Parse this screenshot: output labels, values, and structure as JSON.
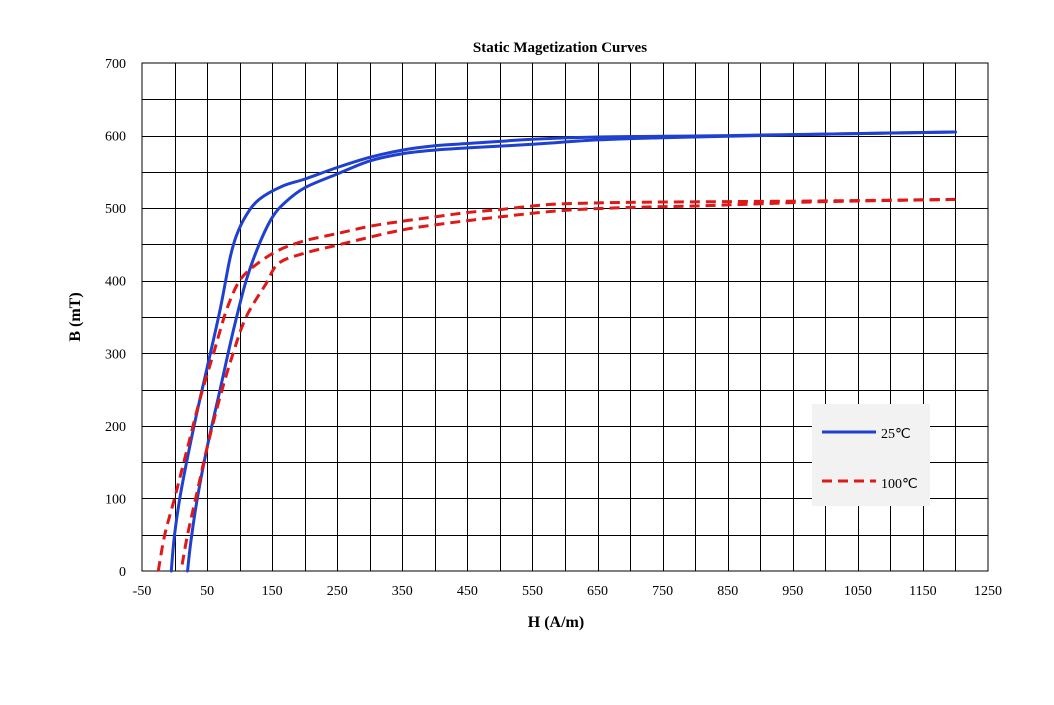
{
  "chart_data": {
    "type": "line",
    "title": "Static Magetization Curves",
    "xlabel": "H (A/m)",
    "ylabel": "B (mT)",
    "xlim": [
      -50,
      1250
    ],
    "ylim": [
      0,
      700
    ],
    "x_ticks": [
      -50,
      50,
      150,
      250,
      350,
      450,
      550,
      650,
      750,
      850,
      950,
      1050,
      1150,
      1250
    ],
    "y_ticks": [
      0,
      100,
      200,
      300,
      400,
      500,
      600,
      700
    ],
    "x_tick_labels": [
      "-50",
      "50",
      "150",
      "250",
      "350",
      "450",
      "550",
      "650",
      "750",
      "850",
      "950",
      "1050",
      "1150",
      "1250"
    ],
    "y_tick_labels": [
      "0",
      "100",
      "200",
      "300",
      "400",
      "500",
      "600",
      "700"
    ],
    "x_grid_step": 50,
    "y_grid_step": 50,
    "grid": true,
    "legend_position": "right",
    "series": [
      {
        "name": "25℃",
        "color": "#2040d0",
        "style": "solid",
        "branches": [
          {
            "label": "upper",
            "points": [
              [
                -5,
                0
              ],
              [
                0,
                50
              ],
              [
                10,
                110
              ],
              [
                30,
                200
              ],
              [
                50,
                280
              ],
              [
                70,
                360
              ],
              [
                85,
                430
              ],
              [
                95,
                462
              ],
              [
                110,
                490
              ],
              [
                130,
                512
              ],
              [
                165,
                530
              ],
              [
                200,
                540
              ],
              [
                250,
                556
              ],
              [
                300,
                570
              ],
              [
                350,
                580
              ],
              [
                400,
                586
              ],
              [
                450,
                589
              ],
              [
                500,
                592
              ],
              [
                550,
                595
              ],
              [
                650,
                598
              ],
              [
                750,
                599
              ],
              [
                850,
                600
              ],
              [
                1000,
                602
              ],
              [
                1200,
                605
              ]
            ]
          },
          {
            "label": "lower",
            "points": [
              [
                1200,
                605
              ],
              [
                1000,
                602
              ],
              [
                850,
                599
              ],
              [
                750,
                597
              ],
              [
                650,
                594
              ],
              [
                550,
                588
              ],
              [
                450,
                583
              ],
              [
                400,
                580
              ],
              [
                350,
                575
              ],
              [
                300,
                565
              ],
              [
                250,
                547
              ],
              [
                200,
                528
              ],
              [
                170,
                508
              ],
              [
                150,
                487
              ],
              [
                130,
                450
              ],
              [
                110,
                400
              ],
              [
                90,
                330
              ],
              [
                70,
                250
              ],
              [
                50,
                170
              ],
              [
                35,
                100
              ],
              [
                25,
                40
              ],
              [
                20,
                0
              ]
            ]
          }
        ]
      },
      {
        "name": "100℃",
        "color": "#e01818",
        "style": "dashed",
        "branches": [
          {
            "label": "upper",
            "points": [
              [
                -25,
                0
              ],
              [
                -15,
                50
              ],
              [
                0,
                100
              ],
              [
                20,
                170
              ],
              [
                40,
                240
              ],
              [
                60,
                300
              ],
              [
                80,
                360
              ],
              [
                100,
                400
              ],
              [
                125,
                422
              ],
              [
                160,
                442
              ],
              [
                200,
                455
              ],
              [
                250,
                465
              ],
              [
                300,
                475
              ],
              [
                350,
                482
              ],
              [
                400,
                488
              ],
              [
                450,
                494
              ],
              [
                500,
                498
              ],
              [
                550,
                503
              ],
              [
                600,
                506
              ],
              [
                700,
                508
              ],
              [
                850,
                509
              ],
              [
                1000,
                510
              ],
              [
                1200,
                512
              ]
            ]
          },
          {
            "label": "lower",
            "points": [
              [
                1200,
                512
              ],
              [
                1000,
                509
              ],
              [
                900,
                506
              ],
              [
                800,
                503
              ],
              [
                700,
                501
              ],
              [
                600,
                497
              ],
              [
                500,
                488
              ],
              [
                400,
                477
              ],
              [
                350,
                470
              ],
              [
                300,
                460
              ],
              [
                250,
                449
              ],
              [
                200,
                438
              ],
              [
                160,
                424
              ],
              [
                140,
                395
              ],
              [
                110,
                350
              ],
              [
                90,
                300
              ],
              [
                70,
                240
              ],
              [
                50,
                170
              ],
              [
                35,
                110
              ],
              [
                20,
                50
              ],
              [
                10,
                0
              ]
            ]
          }
        ]
      }
    ]
  }
}
